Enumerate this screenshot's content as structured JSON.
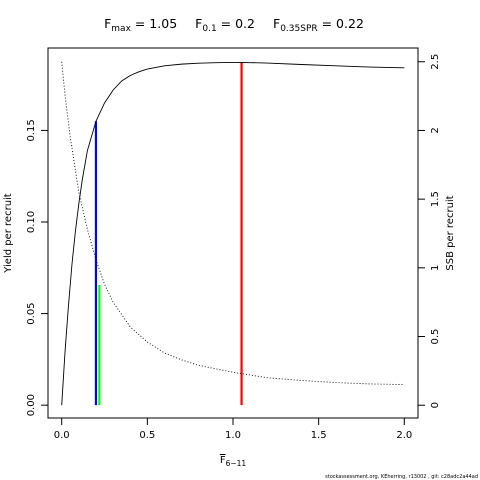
{
  "chart_data": {
    "type": "line",
    "title_parts": [
      {
        "base": "F",
        "sub": "max",
        "rest": " = 1.05"
      },
      {
        "base": "F",
        "sub": "0.1",
        "rest": " = 0.2"
      },
      {
        "base": "F",
        "sub": "0.35SPR",
        "rest": " = 0.22"
      }
    ],
    "xlabel": {
      "base": "F",
      "sub": "6−11"
    },
    "ylabel_left": "Yield per recruit",
    "ylabel_right": "SSB per recruit",
    "xlim": [
      -0.08,
      2.08
    ],
    "ylim_left": [
      -0.007,
      0.195
    ],
    "ylim_right": [
      -0.093,
      2.6
    ],
    "x_ticks": [
      {
        "value": 0.0,
        "label": "0.0"
      },
      {
        "value": 0.5,
        "label": "0.5"
      },
      {
        "value": 1.0,
        "label": "1.0"
      },
      {
        "value": 1.5,
        "label": "1.5"
      },
      {
        "value": 2.0,
        "label": "2.0"
      }
    ],
    "y_left_ticks": [
      {
        "value": 0.0,
        "label": "0.00"
      },
      {
        "value": 0.05,
        "label": "0.05"
      },
      {
        "value": 0.1,
        "label": "0.10"
      },
      {
        "value": 0.15,
        "label": "0.15"
      }
    ],
    "y_right_ticks": [
      {
        "value": 0.0,
        "label": "0"
      },
      {
        "value": 0.5,
        "label": "0.5"
      },
      {
        "value": 1.0,
        "label": "1"
      },
      {
        "value": 1.5,
        "label": "1.5"
      },
      {
        "value": 2.0,
        "label": "2"
      },
      {
        "value": 2.5,
        "label": "2.5"
      }
    ],
    "series": [
      {
        "axis": "left",
        "style": "solid",
        "color": "#000000",
        "x": [
          0.0,
          0.02,
          0.04,
          0.06,
          0.08,
          0.1,
          0.12,
          0.15,
          0.2,
          0.25,
          0.3,
          0.35,
          0.4,
          0.45,
          0.5,
          0.6,
          0.7,
          0.8,
          0.9,
          1.0,
          1.05,
          1.1,
          1.2,
          1.4,
          1.6,
          1.8,
          2.0
        ],
        "y": [
          0.0,
          0.03,
          0.055,
          0.077,
          0.095,
          0.11,
          0.123,
          0.139,
          0.155,
          0.165,
          0.172,
          0.177,
          0.18,
          0.182,
          0.1835,
          0.1853,
          0.1862,
          0.1867,
          0.187,
          0.1871,
          0.1871,
          0.187,
          0.1868,
          0.186,
          0.1853,
          0.1846,
          0.1842
        ]
      },
      {
        "axis": "right",
        "style": "dotted",
        "color": "#000000",
        "x": [
          0.0,
          0.02,
          0.05,
          0.1,
          0.15,
          0.2,
          0.25,
          0.3,
          0.4,
          0.5,
          0.6,
          0.7,
          0.8,
          1.0,
          1.2,
          1.4,
          1.6,
          1.8,
          2.0
        ],
        "y": [
          2.5,
          2.25,
          1.95,
          1.55,
          1.28,
          1.06,
          0.88,
          0.75,
          0.57,
          0.46,
          0.38,
          0.33,
          0.29,
          0.24,
          0.2,
          0.18,
          0.165,
          0.155,
          0.15
        ]
      }
    ],
    "reference_lines": [
      {
        "name": "Fmax",
        "x": 1.05,
        "axis": "left",
        "y_top": 0.1871,
        "color": "#ff0000"
      },
      {
        "name": "F0.1",
        "x": 0.2,
        "axis": "left",
        "y_top": 0.155,
        "color": "#0000ff"
      },
      {
        "name": "F0.35SPR",
        "x": 0.22,
        "axis": "right",
        "y_top": 0.875,
        "color": "#00ff00"
      }
    ],
    "grid": false,
    "credit": "stockassessment.org, KEherring, r13002 , git: c28adc2a44ad"
  }
}
